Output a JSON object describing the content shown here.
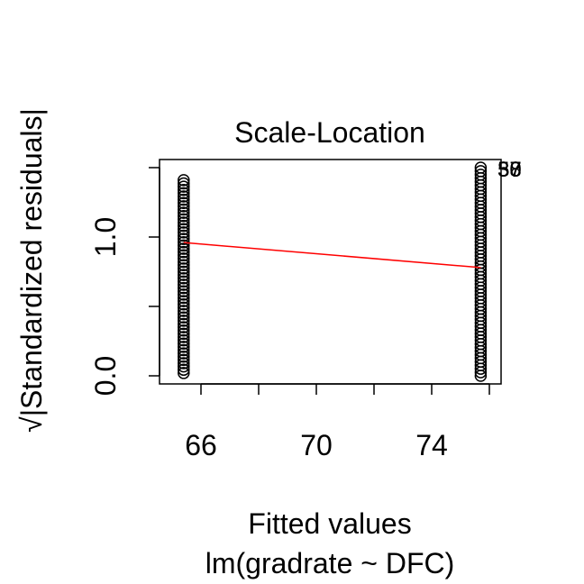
{
  "chart_data": {
    "type": "scatter",
    "title": "Scale-Location",
    "xlabel": "Fitted values",
    "sublabel": "lm(gradrate ~ DFC)",
    "ylabel": "√|Standardized residuals|",
    "xlim": [
      65.0,
      76.0
    ],
    "ylim": [
      0.0,
      1.5
    ],
    "x_ticks": [
      "66",
      "70",
      "74"
    ],
    "x_tick_values": [
      66,
      68,
      70,
      72,
      74,
      76
    ],
    "y_ticks": [
      "0.0",
      "0.5",
      "1.0",
      "1.5"
    ],
    "y_tick_values": [
      0.0,
      0.5,
      1.0,
      1.5
    ],
    "y_tick_labels_shown": [
      "0.0",
      "1.0"
    ],
    "groups": [
      {
        "x": 65.4,
        "y_min": 0.02,
        "y_max": 1.41
      },
      {
        "x": 75.7,
        "y_min": 0.0,
        "y_max": 1.5
      }
    ],
    "smooth_line": {
      "color": "#ff0000",
      "points": [
        [
          65.4,
          0.96
        ],
        [
          75.7,
          0.78
        ]
      ]
    },
    "outlier_labels": [
      "37",
      "38",
      "50"
    ],
    "point_color": "#000000",
    "grid": false
  }
}
